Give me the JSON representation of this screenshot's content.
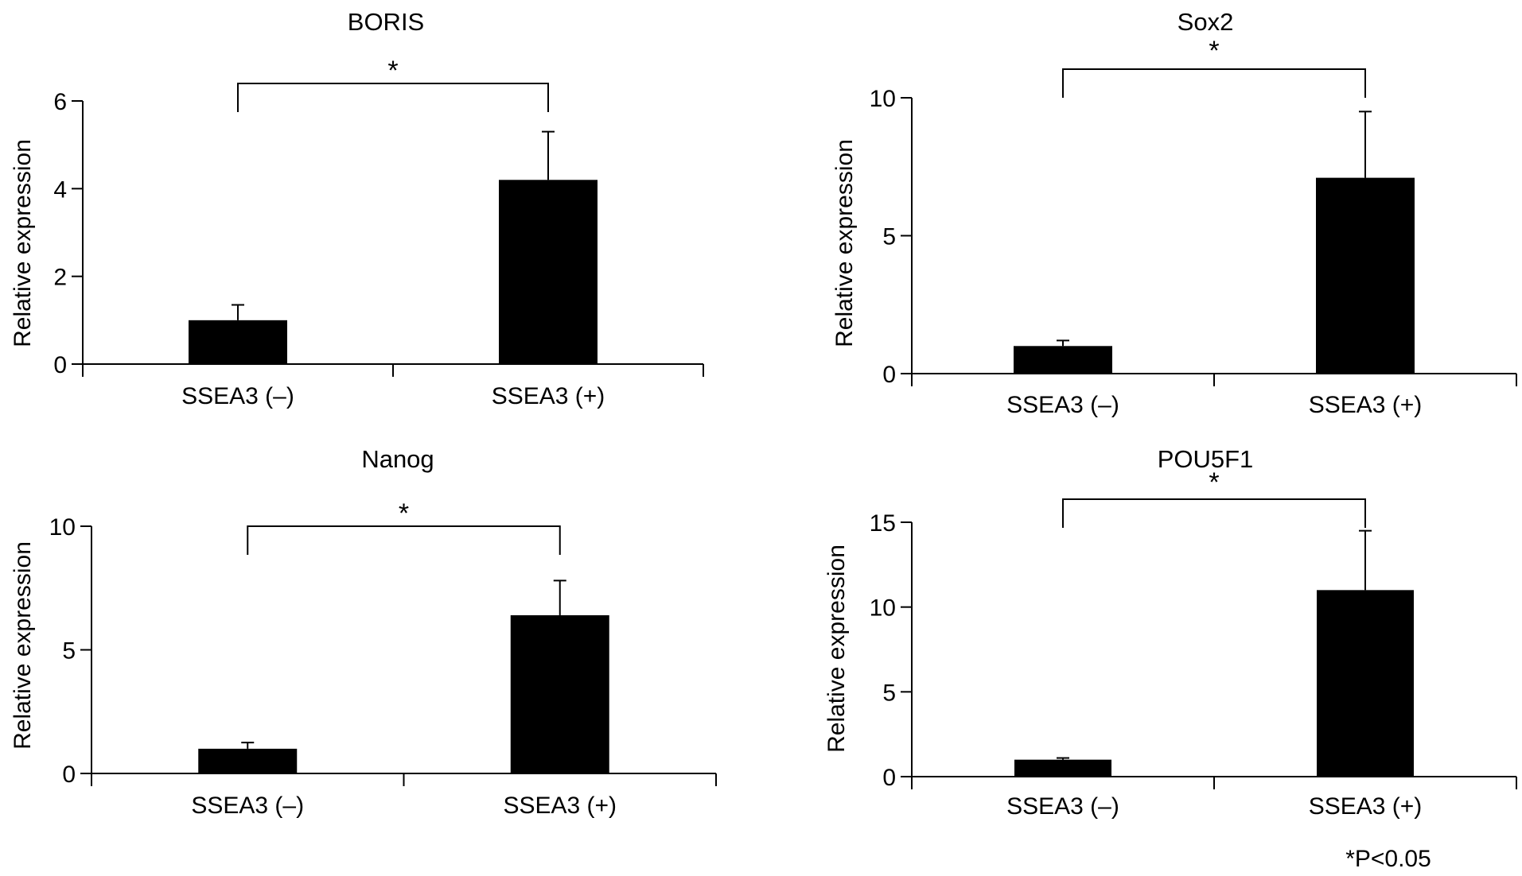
{
  "footnote": "*P<0.05",
  "chart_data": [
    {
      "type": "bar",
      "title": "BORIS",
      "ylabel": "Relative expression",
      "xlabel": "",
      "categories": [
        "SSEA3 (–)",
        "SSEA3 (+)"
      ],
      "values": [
        1.0,
        4.2
      ],
      "error": [
        0.35,
        1.1
      ],
      "ylim": [
        0,
        6
      ],
      "yticks": [
        0,
        2,
        4,
        6
      ],
      "grid": false,
      "bar_color": "#000000",
      "significance": {
        "pair": [
          0,
          1
        ],
        "label": "*"
      }
    },
    {
      "type": "bar",
      "title": "Sox2",
      "ylabel": "Relative expression",
      "xlabel": "",
      "categories": [
        "SSEA3 (–)",
        "SSEA3 (+)"
      ],
      "values": [
        1.0,
        7.1
      ],
      "error": [
        0.2,
        2.4
      ],
      "ylim": [
        0,
        10
      ],
      "yticks": [
        0,
        5,
        10
      ],
      "grid": false,
      "bar_color": "#000000",
      "significance": {
        "pair": [
          0,
          1
        ],
        "label": "*"
      }
    },
    {
      "type": "bar",
      "title": "Nanog",
      "ylabel": "Relative expression",
      "xlabel": "",
      "categories": [
        "SSEA3 (–)",
        "SSEA3 (+)"
      ],
      "values": [
        1.0,
        6.4
      ],
      "error": [
        0.25,
        1.4
      ],
      "ylim": [
        0,
        10
      ],
      "yticks": [
        0,
        5,
        10
      ],
      "grid": false,
      "bar_color": "#000000",
      "significance": {
        "pair": [
          0,
          1
        ],
        "label": "*"
      }
    },
    {
      "type": "bar",
      "title": "POU5F1",
      "ylabel": "Relative expression",
      "xlabel": "",
      "categories": [
        "SSEA3 (–)",
        "SSEA3 (+)"
      ],
      "values": [
        1.0,
        11.0
      ],
      "error": [
        0.1,
        3.5
      ],
      "ylim": [
        0,
        15
      ],
      "yticks": [
        0,
        5,
        10,
        15
      ],
      "grid": false,
      "bar_color": "#000000",
      "significance": {
        "pair": [
          0,
          1
        ],
        "label": "*"
      }
    }
  ]
}
